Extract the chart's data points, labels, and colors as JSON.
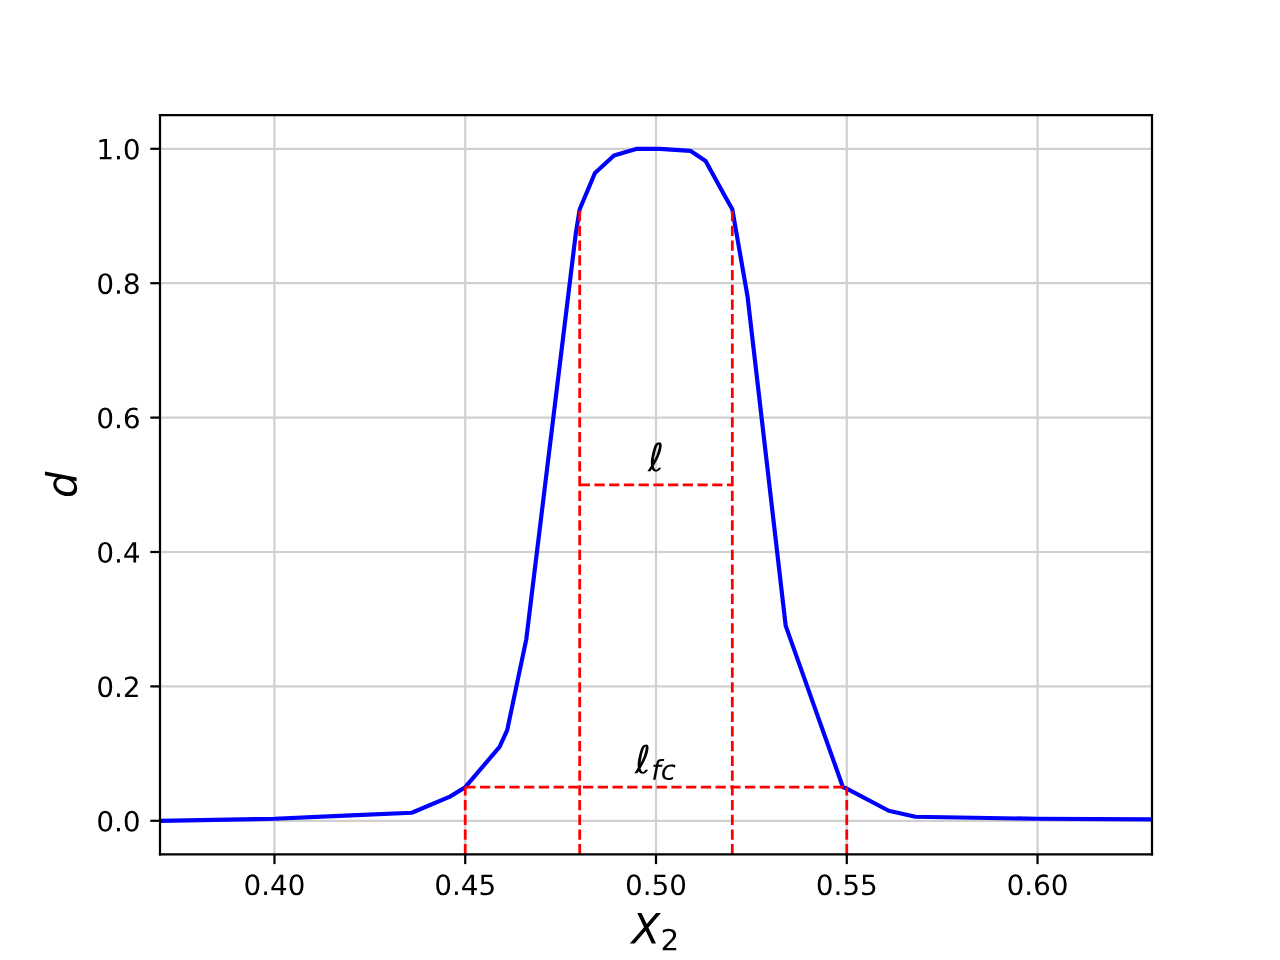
{
  "chart_data": {
    "type": "line",
    "xlabel": "X$_{2}$",
    "ylabel": "d",
    "xlim": [
      0.37,
      0.63
    ],
    "ylim": [
      -0.05,
      1.05
    ],
    "xticks": [
      {
        "value": 0.4,
        "label": "0.40"
      },
      {
        "value": 0.45,
        "label": "0.45"
      },
      {
        "value": 0.5,
        "label": "0.50"
      },
      {
        "value": 0.55,
        "label": "0.55"
      },
      {
        "value": 0.6,
        "label": "0.60"
      }
    ],
    "yticks": [
      {
        "value": 0,
        "label": "0.0"
      },
      {
        "value": 0.2,
        "label": "0.2"
      },
      {
        "value": 0.4,
        "label": "0.4"
      },
      {
        "value": 0.6,
        "label": "0.6"
      },
      {
        "value": 0.8,
        "label": "0.8"
      },
      {
        "value": 1,
        "label": "1.0"
      }
    ],
    "grid": true,
    "series": [
      {
        "color": "#0000ff",
        "line_style": "solid",
        "x": [
          0.37,
          0.4,
          0.42,
          0.436,
          0.446,
          0.45,
          0.459,
          0.461,
          0.466,
          0.479,
          0.48,
          0.484,
          0.489,
          0.495,
          0.501,
          0.509,
          0.513,
          0.518,
          0.52,
          0.524,
          0.534,
          0.549,
          0.55,
          0.561,
          0.568,
          0.6,
          0.63
        ],
        "values": [
          0.0,
          0.003,
          0.008,
          0.012,
          0.036,
          0.05,
          0.11,
          0.135,
          0.27,
          0.875,
          0.91,
          0.964,
          0.99,
          1.0,
          1.0,
          0.997,
          0.982,
          0.93,
          0.91,
          0.78,
          0.29,
          0.05,
          0.048,
          0.015,
          0.006,
          0.003,
          0.002
        ]
      },
      {
        "color": "#ff0000",
        "line_style": "dashed",
        "x": [
          0.45,
          0.45
        ],
        "values": [
          -0.05,
          0.05
        ]
      },
      {
        "color": "#ff0000",
        "line_style": "dashed",
        "x": [
          0.48,
          0.48
        ],
        "values": [
          -0.05,
          0.91
        ]
      },
      {
        "color": "#ff0000",
        "line_style": "dashed",
        "x": [
          0.52,
          0.52
        ],
        "values": [
          -0.05,
          0.91
        ]
      },
      {
        "color": "#ff0000",
        "line_style": "dashed",
        "x": [
          0.55,
          0.55
        ],
        "values": [
          -0.05,
          0.05
        ]
      },
      {
        "color": "#ff0000",
        "line_style": "dashed",
        "x": [
          0.48,
          0.52
        ],
        "values": [
          0.5,
          0.5
        ]
      },
      {
        "color": "#ff0000",
        "line_style": "dashed",
        "x": [
          0.45,
          0.55
        ],
        "values": [
          0.05,
          0.05
        ]
      }
    ],
    "annotations": [
      "ℓ",
      "ℓ$_{fc}$"
    ]
  }
}
